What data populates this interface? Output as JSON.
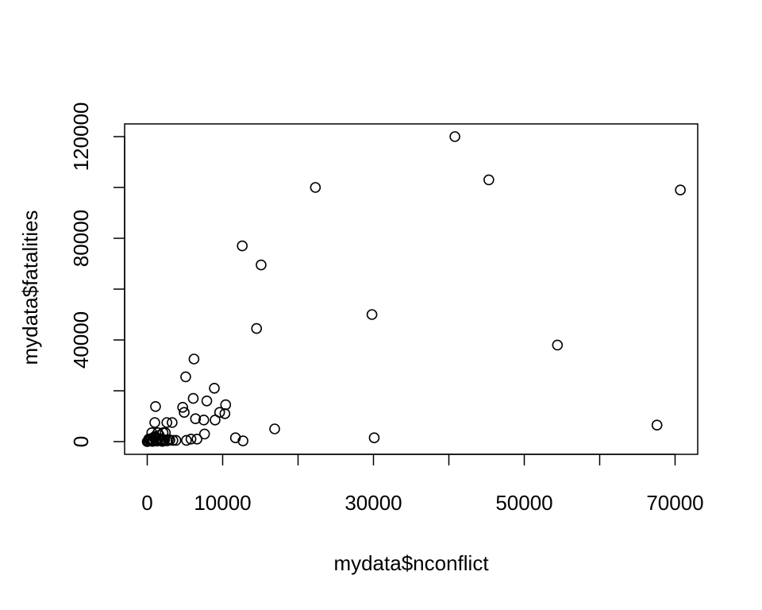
{
  "chart_data": {
    "type": "scatter",
    "title": "",
    "xlabel": "mydata$nconflict",
    "ylabel": "mydata$fatalities",
    "xlim": [
      -3000,
      73000
    ],
    "ylim": [
      -5000,
      125000
    ],
    "x_ticks": [
      0,
      10000,
      20000,
      30000,
      40000,
      50000,
      60000,
      70000
    ],
    "x_tick_labels": [
      "0",
      "10000",
      "",
      "30000",
      "",
      "50000",
      "",
      "70000"
    ],
    "y_ticks": [
      0,
      20000,
      40000,
      60000,
      80000,
      100000,
      120000
    ],
    "y_tick_labels": [
      "0",
      "",
      "40000",
      "",
      "80000",
      "",
      "120000"
    ],
    "grid": false,
    "legend": "none",
    "marker": "open-circle",
    "colors": {
      "marker": "#000000",
      "axis": "#000000",
      "background": "#ffffff"
    },
    "series": [
      {
        "points": [
          [
            40800,
            120000
          ],
          [
            45300,
            103000
          ],
          [
            22300,
            100000
          ],
          [
            70700,
            99000
          ],
          [
            12600,
            77000
          ],
          [
            15100,
            69500
          ],
          [
            29800,
            50000
          ],
          [
            14500,
            44500
          ],
          [
            54400,
            38000
          ],
          [
            6200,
            32500
          ],
          [
            5100,
            25500
          ],
          [
            8900,
            21000
          ],
          [
            6100,
            17000
          ],
          [
            7900,
            16000
          ],
          [
            10400,
            14500
          ],
          [
            1100,
            13800
          ],
          [
            4700,
            13500
          ],
          [
            4900,
            11500
          ],
          [
            9600,
            11500
          ],
          [
            10300,
            11000
          ],
          [
            6400,
            9000
          ],
          [
            7500,
            8500
          ],
          [
            9000,
            8500
          ],
          [
            1000,
            7500
          ],
          [
            2600,
            7500
          ],
          [
            3300,
            7500
          ],
          [
            67600,
            6500
          ],
          [
            16900,
            5000
          ],
          [
            600,
            3500
          ],
          [
            1400,
            3500
          ],
          [
            2100,
            3500
          ],
          [
            2400,
            3500
          ],
          [
            7600,
            3000
          ],
          [
            1600,
            2500
          ],
          [
            11700,
            1500
          ],
          [
            30100,
            1500
          ],
          [
            6600,
            1000
          ],
          [
            5800,
            1000
          ],
          [
            3400,
            500
          ],
          [
            3800,
            500
          ],
          [
            5200,
            500
          ],
          [
            12700,
            300
          ],
          [
            0,
            0
          ],
          [
            150,
            200
          ],
          [
            300,
            500
          ],
          [
            400,
            800
          ],
          [
            500,
            1200
          ],
          [
            600,
            300
          ],
          [
            800,
            600
          ],
          [
            900,
            1500
          ],
          [
            1000,
            2000
          ],
          [
            1200,
            800
          ],
          [
            1500,
            1200
          ],
          [
            1700,
            500
          ],
          [
            1900,
            900
          ],
          [
            2100,
            400
          ],
          [
            2300,
            700
          ],
          [
            2600,
            300
          ],
          [
            2800,
            800
          ],
          [
            3000,
            600
          ],
          [
            200,
            1000
          ],
          [
            700,
            100
          ],
          [
            1300,
            200
          ],
          [
            2000,
            100
          ]
        ]
      }
    ]
  }
}
